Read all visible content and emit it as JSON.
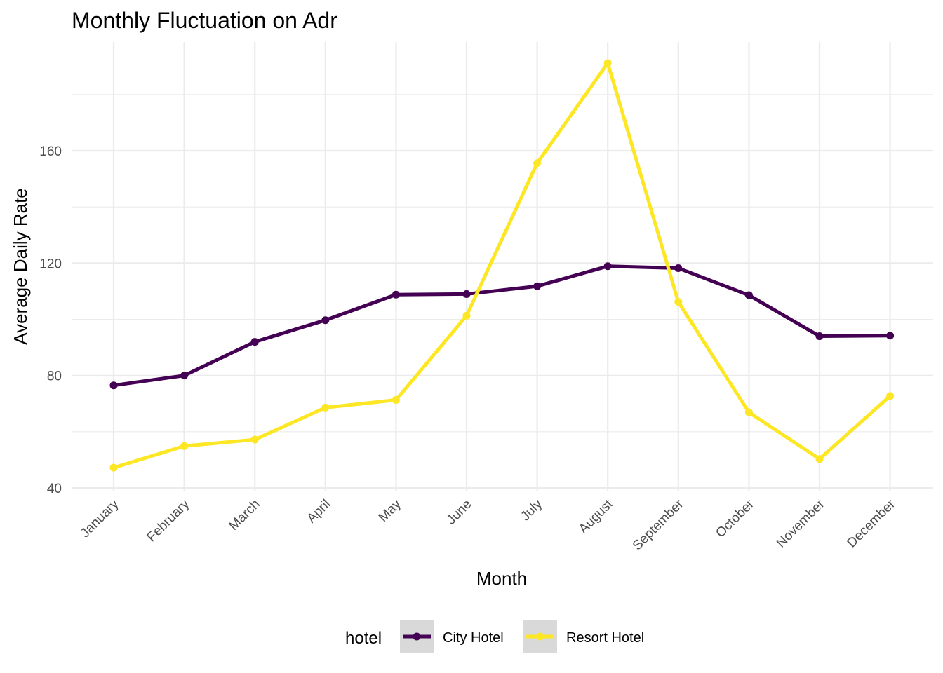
{
  "chart_data": {
    "type": "line",
    "title": "Monthly Fluctuation on Adr",
    "xlabel": "Month",
    "ylabel": "Average Daily Rate",
    "categories": [
      "January",
      "February",
      "March",
      "April",
      "May",
      "June",
      "July",
      "August",
      "September",
      "October",
      "November",
      "December"
    ],
    "series": [
      {
        "name": "City Hotel",
        "color": "#440154",
        "values": [
          76.5,
          80.0,
          92.0,
          99.7,
          108.8,
          109.0,
          111.8,
          118.9,
          118.2,
          108.6,
          94.0,
          94.2
        ]
      },
      {
        "name": "Resort Hotel",
        "color": "#FDE725",
        "values": [
          47.2,
          54.9,
          57.2,
          68.6,
          71.3,
          101.3,
          155.6,
          191.2,
          106.2,
          66.9,
          50.3,
          72.7
        ]
      }
    ],
    "ylim": [
      35,
      198
    ],
    "yticks": [
      40,
      80,
      120,
      160
    ],
    "grid": true,
    "legend": {
      "title": "hotel",
      "position": "bottom"
    }
  }
}
